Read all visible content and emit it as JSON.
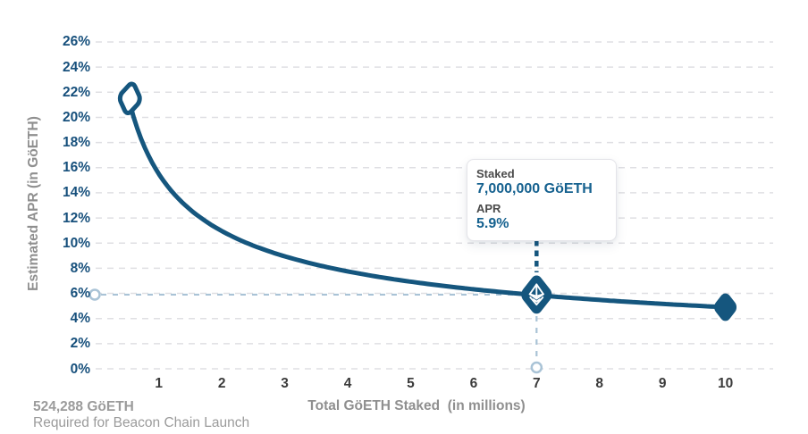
{
  "colors": {
    "primary_blue": "#15567E",
    "tooltip_value_blue": "#15618F",
    "y_tick_blue": "#17507C",
    "x_tick_dark": "#3B3B3B",
    "axis_title_gray": "#8F8F8F",
    "footnote_gray": "#9B9B9B",
    "tooltip_label_gray": "#4A4A4A",
    "gridline_gray": "#DFDFE3",
    "guide_light_blue": "#A9C3D6",
    "marker_glyph_white": "#FFFFFF",
    "background": "#FFFFFF"
  },
  "chart_data": {
    "type": "line",
    "title": "",
    "xlabel": "Total GöETH Staked  (in millions)",
    "ylabel": "Estimated APR (in GöETH)",
    "x_tick_labels": [
      "1",
      "2",
      "3",
      "4",
      "5",
      "6",
      "7",
      "8",
      "9",
      "10"
    ],
    "y_tick_labels": [
      "0%",
      "2%",
      "4%",
      "6%",
      "8%",
      "10%",
      "12%",
      "14%",
      "16%",
      "18%",
      "20%",
      "22%",
      "24%",
      "26%"
    ],
    "xlim": [
      0,
      10.75
    ],
    "ylim": [
      0,
      26
    ],
    "grid": "horizontal-dashed",
    "legend": "none",
    "curve": {
      "name": "Estimated APR vs total stake",
      "relation": "apr_percent ≈ 15.5 / sqrt(staked_millions)",
      "k": 15.5,
      "x_start": 0.54,
      "x_end": 10,
      "sample_points": [
        [
          0.54,
          21.5
        ],
        [
          1,
          15.5
        ],
        [
          2,
          11.0
        ],
        [
          3,
          8.9
        ],
        [
          4,
          7.8
        ],
        [
          5,
          6.9
        ],
        [
          6,
          6.3
        ],
        [
          7,
          5.9
        ],
        [
          8,
          5.5
        ],
        [
          9,
          5.2
        ],
        [
          10,
          4.9
        ]
      ]
    },
    "markers": [
      {
        "x": 0.54,
        "y": 21.5,
        "style": "hollow-diamond"
      },
      {
        "x": 7,
        "y": 5.9,
        "style": "eth-logo-diamond"
      },
      {
        "x": 10,
        "y": 4.9,
        "style": "filled-diamond"
      }
    ],
    "highlight": {
      "x": 7,
      "y": 5.9
    }
  },
  "tooltip": {
    "staked_label": "Staked",
    "staked_value": "7,000,000 GöETH",
    "apr_label": "APR",
    "apr_value": "5.9%"
  },
  "footnote": {
    "value": "524,288 GöETH",
    "description": "Required for Beacon Chain Launch"
  }
}
